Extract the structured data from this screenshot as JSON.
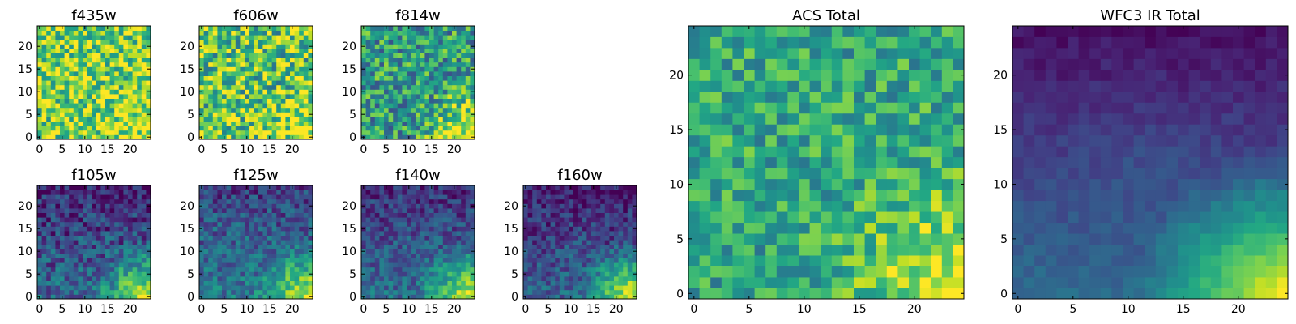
{
  "figure_title": "",
  "chart_data": [
    {
      "type": "heatmap",
      "title": "f435w",
      "colormap": "viridis",
      "grid_size": [
        25,
        25
      ],
      "origin": "lower",
      "xticks": [
        0,
        5,
        10,
        15,
        20
      ],
      "yticks": [
        0,
        5,
        10,
        15,
        20
      ],
      "xlim": [
        -0.5,
        24.5
      ],
      "ylim": [
        -0.5,
        24.5
      ],
      "pattern": {
        "base": 0.8,
        "noise": 0.32,
        "gradient": 0.0,
        "corner_boost": 0.1
      }
    },
    {
      "type": "heatmap",
      "title": "f606w",
      "colormap": "viridis",
      "grid_size": [
        25,
        25
      ],
      "origin": "lower",
      "xticks": [
        0,
        5,
        10,
        15,
        20
      ],
      "yticks": [
        0,
        5,
        10,
        15,
        20
      ],
      "xlim": [
        -0.5,
        24.5
      ],
      "ylim": [
        -0.5,
        24.5
      ],
      "pattern": {
        "base": 0.72,
        "noise": 0.35,
        "gradient": 0.0,
        "corner_boost": 0.25
      }
    },
    {
      "type": "heatmap",
      "title": "f814w",
      "colormap": "viridis",
      "grid_size": [
        25,
        25
      ],
      "origin": "lower",
      "xticks": [
        0,
        5,
        10,
        15,
        20
      ],
      "yticks": [
        0,
        5,
        10,
        15,
        20
      ],
      "xlim": [
        -0.5,
        24.5
      ],
      "ylim": [
        -0.5,
        24.5
      ],
      "pattern": {
        "base": 0.55,
        "noise": 0.3,
        "gradient": 0.0,
        "corner_boost": 0.45
      }
    },
    {
      "type": "heatmap",
      "title": "f105w",
      "colormap": "viridis",
      "grid_size": [
        25,
        25
      ],
      "origin": "lower",
      "xticks": [
        0,
        5,
        10,
        15,
        20
      ],
      "yticks": [
        0,
        5,
        10,
        15,
        20
      ],
      "xlim": [
        -0.5,
        24.5
      ],
      "ylim": [
        -0.5,
        24.5
      ],
      "pattern": {
        "base": 0.22,
        "noise": 0.2,
        "gradient": 0.25,
        "corner_boost": 0.6
      }
    },
    {
      "type": "heatmap",
      "title": "f125w",
      "colormap": "viridis",
      "grid_size": [
        25,
        25
      ],
      "origin": "lower",
      "xticks": [
        0,
        5,
        10,
        15,
        20
      ],
      "yticks": [
        0,
        5,
        10,
        15,
        20
      ],
      "xlim": [
        -0.5,
        24.5
      ],
      "ylim": [
        -0.5,
        24.5
      ],
      "pattern": {
        "base": 0.3,
        "noise": 0.18,
        "gradient": 0.22,
        "corner_boost": 0.55
      }
    },
    {
      "type": "heatmap",
      "title": "f140w",
      "colormap": "viridis",
      "grid_size": [
        25,
        25
      ],
      "origin": "lower",
      "xticks": [
        0,
        5,
        10,
        15,
        20
      ],
      "yticks": [
        0,
        5,
        10,
        15,
        20
      ],
      "xlim": [
        -0.5,
        24.5
      ],
      "ylim": [
        -0.5,
        24.5
      ],
      "pattern": {
        "base": 0.25,
        "noise": 0.16,
        "gradient": 0.22,
        "corner_boost": 0.6
      }
    },
    {
      "type": "heatmap",
      "title": "f160w",
      "colormap": "viridis",
      "grid_size": [
        25,
        25
      ],
      "origin": "lower",
      "xticks": [
        0,
        5,
        10,
        15,
        20
      ],
      "yticks": [
        0,
        5,
        10,
        15,
        20
      ],
      "xlim": [
        -0.5,
        24.5
      ],
      "ylim": [
        -0.5,
        24.5
      ],
      "pattern": {
        "base": 0.2,
        "noise": 0.16,
        "gradient": 0.25,
        "corner_boost": 0.65
      }
    },
    {
      "type": "heatmap",
      "title": "ACS Total",
      "colormap": "viridis",
      "grid_size": [
        25,
        25
      ],
      "origin": "lower",
      "xticks": [
        0,
        5,
        10,
        15,
        20
      ],
      "yticks": [
        0,
        5,
        10,
        15,
        20
      ],
      "xlim": [
        -0.5,
        24.5
      ],
      "ylim": [
        -0.5,
        24.5
      ],
      "pattern": {
        "base": 0.6,
        "noise": 0.22,
        "gradient": 0.0,
        "corner_boost": 0.4
      }
    },
    {
      "type": "heatmap",
      "title": "WFC3 IR Total",
      "colormap": "viridis",
      "grid_size": [
        25,
        25
      ],
      "origin": "lower",
      "xticks": [
        0,
        5,
        10,
        15,
        20
      ],
      "yticks": [
        0,
        5,
        10,
        15,
        20
      ],
      "xlim": [
        -0.5,
        24.5
      ],
      "ylim": [
        -0.5,
        24.5
      ],
      "pattern": {
        "base": 0.2,
        "noise": 0.05,
        "gradient": 0.3,
        "corner_boost": 0.65
      }
    }
  ]
}
